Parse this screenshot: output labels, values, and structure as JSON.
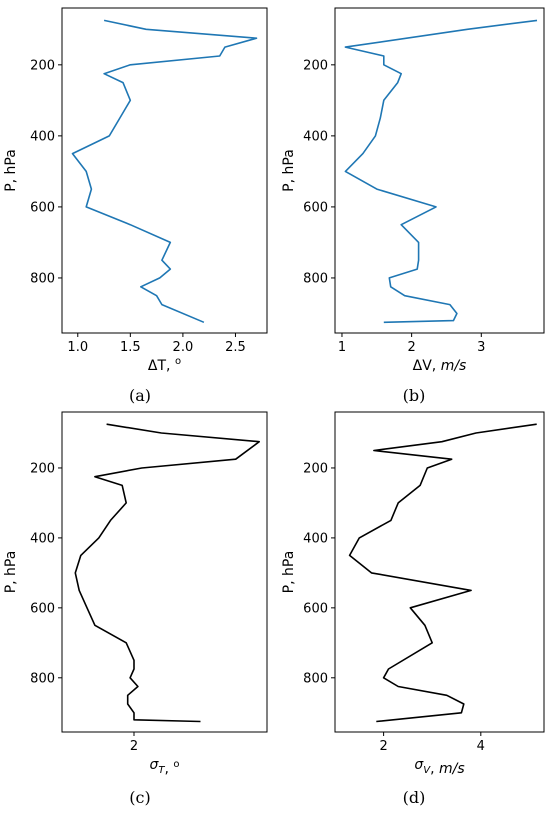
{
  "figure": {
    "panels": [
      {
        "caption": "(a)"
      },
      {
        "caption": "(b)"
      },
      {
        "caption": "(c)"
      },
      {
        "caption": "(d)"
      }
    ]
  },
  "chart_data": [
    {
      "type": "line",
      "xlabel": "ΔT, °",
      "ylabel": "P, hPa",
      "x_ticks": [
        1.0,
        1.5,
        2.0,
        2.5
      ],
      "x_tick_labels": [
        "1.0",
        "1.5",
        "2.0",
        "2.5"
      ],
      "y_ticks": [
        200,
        400,
        600,
        800
      ],
      "y_tick_labels": [
        "200",
        "400",
        "600",
        "800"
      ],
      "xlim": [
        0.85,
        2.8
      ],
      "ylim": [
        955,
        40
      ],
      "color": "#1f77b4",
      "series": [
        {
          "x": [
            1.25,
            1.65,
            2.7,
            2.4,
            2.35,
            1.5,
            1.25,
            1.43,
            1.5,
            1.4,
            1.3,
            0.95,
            1.08,
            1.13,
            1.08,
            1.5,
            1.88,
            1.8,
            1.88,
            1.78,
            1.6,
            1.75,
            1.8,
            2.2
          ],
          "y": [
            75,
            100,
            125,
            150,
            175,
            200,
            225,
            250,
            300,
            350,
            400,
            450,
            500,
            550,
            600,
            650,
            700,
            750,
            775,
            800,
            825,
            850,
            875,
            925
          ]
        }
      ]
    },
    {
      "type": "line",
      "xlabel": "ΔV, m/s",
      "ylabel": "P, hPa",
      "x_ticks": [
        1,
        2,
        3
      ],
      "x_tick_labels": [
        "1",
        "2",
        "3"
      ],
      "y_ticks": [
        200,
        400,
        600,
        800
      ],
      "y_tick_labels": [
        "200",
        "400",
        "600",
        "800"
      ],
      "xlim": [
        0.9,
        3.9
      ],
      "ylim": [
        955,
        40
      ],
      "color": "#1f77b4",
      "series": [
        {
          "x": [
            3.8,
            2.8,
            1.05,
            1.6,
            1.6,
            1.85,
            1.8,
            1.6,
            1.55,
            1.48,
            1.3,
            1.05,
            1.5,
            2.35,
            1.85,
            2.1,
            2.1,
            2.08,
            1.68,
            1.7,
            1.9,
            2.55,
            2.65,
            2.6,
            1.6
          ],
          "y": [
            75,
            100,
            150,
            175,
            200,
            225,
            250,
            300,
            350,
            400,
            450,
            500,
            550,
            600,
            650,
            700,
            750,
            775,
            800,
            825,
            850,
            875,
            900,
            920,
            925
          ]
        }
      ]
    },
    {
      "type": "line",
      "xlabel": "σT, °",
      "ylabel": "P, hPa",
      "x_ticks": [
        2
      ],
      "x_tick_labels": [
        "2"
      ],
      "y_ticks": [
        200,
        400,
        600,
        800
      ],
      "y_tick_labels": [
        "200",
        "400",
        "600",
        "800"
      ],
      "xlim": [
        1.08,
        3.7
      ],
      "ylim": [
        955,
        40
      ],
      "color": "#000000",
      "series": [
        {
          "x": [
            1.65,
            2.35,
            3.6,
            3.3,
            2.1,
            1.5,
            1.85,
            1.9,
            1.7,
            1.55,
            1.32,
            1.25,
            1.3,
            1.4,
            1.5,
            1.9,
            2.0,
            2.0,
            1.95,
            2.05,
            1.92,
            1.92,
            2.0,
            2.0,
            2.85
          ],
          "y": [
            75,
            100,
            125,
            175,
            200,
            225,
            250,
            300,
            350,
            400,
            450,
            500,
            550,
            600,
            650,
            700,
            750,
            775,
            800,
            825,
            850,
            875,
            900,
            920,
            925
          ]
        }
      ]
    },
    {
      "type": "line",
      "xlabel": "σV, m/s",
      "ylabel": "P, hPa",
      "x_ticks": [
        2,
        4
      ],
      "x_tick_labels": [
        "2",
        "4"
      ],
      "y_ticks": [
        200,
        400,
        600,
        800
      ],
      "y_tick_labels": [
        "200",
        "400",
        "600",
        "800"
      ],
      "xlim": [
        1.0,
        5.3
      ],
      "ylim": [
        955,
        40
      ],
      "color": "#000000",
      "series": [
        {
          "x": [
            5.15,
            3.9,
            3.2,
            1.8,
            3.4,
            2.9,
            2.75,
            2.3,
            2.15,
            1.5,
            1.3,
            1.75,
            3.8,
            2.55,
            2.85,
            3.0,
            2.1,
            2.0,
            2.3,
            3.3,
            3.65,
            3.6,
            1.85
          ],
          "y": [
            75,
            100,
            125,
            150,
            175,
            200,
            250,
            300,
            350,
            400,
            450,
            500,
            550,
            600,
            650,
            700,
            775,
            800,
            825,
            850,
            875,
            900,
            925
          ]
        }
      ]
    }
  ]
}
